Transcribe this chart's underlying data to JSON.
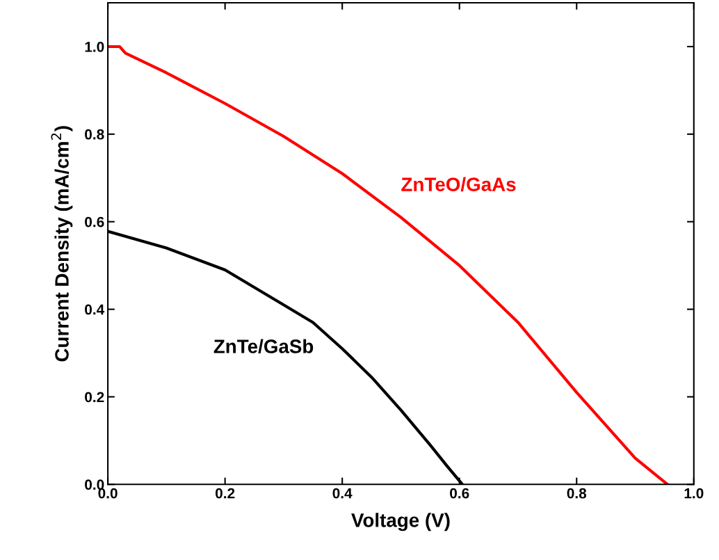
{
  "chart_data": {
    "type": "line",
    "xlabel": "Voltage (V)",
    "ylabel": "Current Density (mA/cm$^{2}$)",
    "xlim": [
      0,
      1.0
    ],
    "ylim": [
      0,
      1.1
    ],
    "xticks": [
      {
        "value": 0,
        "label": "0.0"
      },
      0.2,
      0.4,
      0.6,
      0.8,
      {
        "value": 1.0,
        "label": "1.0"
      }
    ],
    "yticks": [
      {
        "value": 0,
        "label": "0.0"
      },
      0.2,
      0.4,
      0.6,
      0.8,
      {
        "value": 1.0,
        "label": "1.0"
      }
    ],
    "grid": false,
    "legend": false,
    "marker": "none",
    "line_style": "solid",
    "series": [
      {
        "name": "ZnTeO/GaAs",
        "color": "#ff0000",
        "x": [
          0,
          0.02,
          0.03,
          0.1,
          0.2,
          0.3,
          0.4,
          0.5,
          0.6,
          0.7,
          0.8,
          0.9,
          0.955
        ],
        "values": [
          1.0,
          1.0,
          0.985,
          0.94,
          0.87,
          0.795,
          0.71,
          0.61,
          0.5,
          0.37,
          0.21,
          0.06,
          0.0
        ]
      },
      {
        "name": "ZnTe/GaSb",
        "color": "#000000",
        "x": [
          0,
          0.1,
          0.2,
          0.3,
          0.35,
          0.4,
          0.45,
          0.5,
          0.55,
          0.58,
          0.605
        ],
        "values": [
          0.578,
          0.54,
          0.49,
          0.41,
          0.37,
          0.31,
          0.245,
          0.17,
          0.09,
          0.04,
          0.0
        ]
      }
    ]
  }
}
